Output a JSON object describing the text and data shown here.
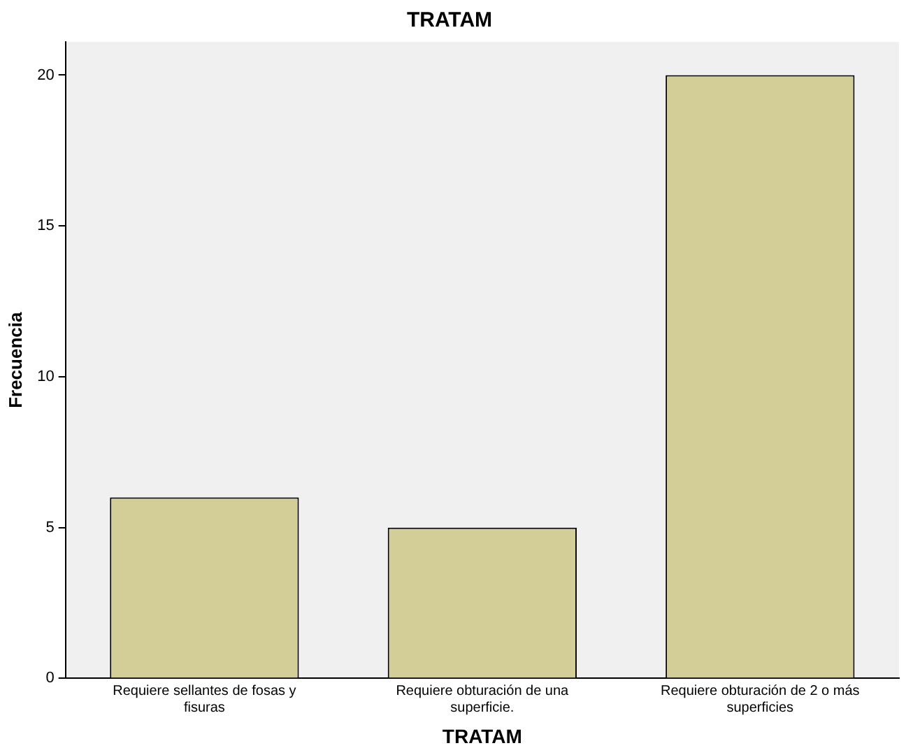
{
  "chart_data": {
    "type": "bar",
    "title": "TRATAM",
    "xlabel": "TRATAM",
    "ylabel": "Frecuencia",
    "categories": [
      "Requiere sellantes de fosas y fisuras",
      "Requiere obturación de una superficie.",
      "Requiere obturación de 2 o más superficies"
    ],
    "values": [
      6,
      5,
      20
    ],
    "color": "#d3ce97",
    "ylim": [
      0,
      21.1
    ],
    "yticks": [
      0,
      5,
      10,
      15,
      20
    ],
    "grid": false,
    "legend": false
  }
}
